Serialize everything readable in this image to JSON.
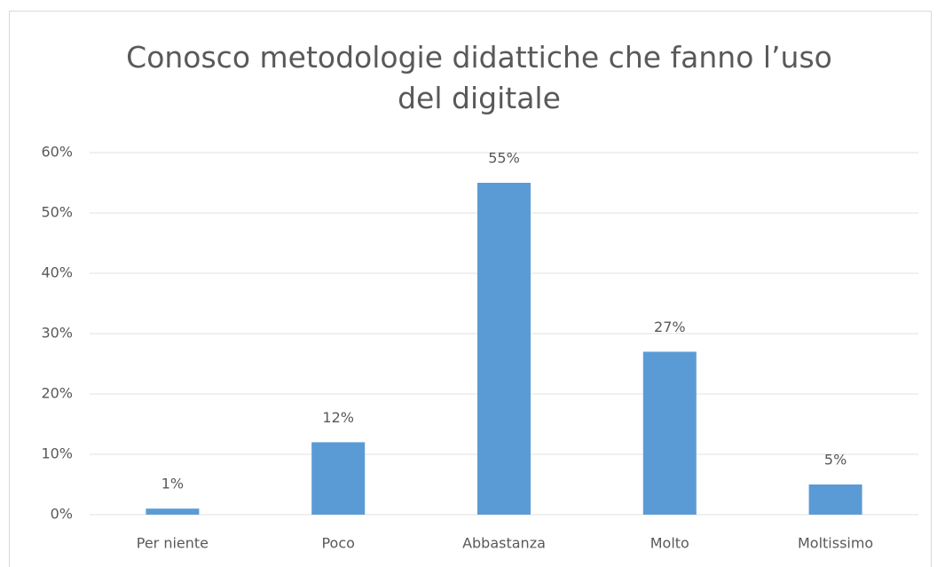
{
  "chart_data": {
    "type": "bar",
    "title": "Conosco metodologie didattiche che fanno l’uso del digitale",
    "categories": [
      "Per niente",
      "Poco",
      "Abbastanza",
      "Molto",
      "Moltissimo"
    ],
    "values": [
      1,
      12,
      55,
      27,
      5
    ],
    "value_labels": [
      "1%",
      "12%",
      "55%",
      "27%",
      "5%"
    ],
    "color": "#5b9bd5",
    "ylim": [
      0,
      60
    ],
    "yticks": [
      {
        "value": 0,
        "label": "0%"
      },
      {
        "value": 10,
        "label": "10%"
      },
      {
        "value": 20,
        "label": "20%"
      },
      {
        "value": 30,
        "label": "30%"
      },
      {
        "value": 40,
        "label": "40%"
      },
      {
        "value": 50,
        "label": "50%"
      },
      {
        "value": 60,
        "label": "60%"
      }
    ],
    "grid": true
  }
}
